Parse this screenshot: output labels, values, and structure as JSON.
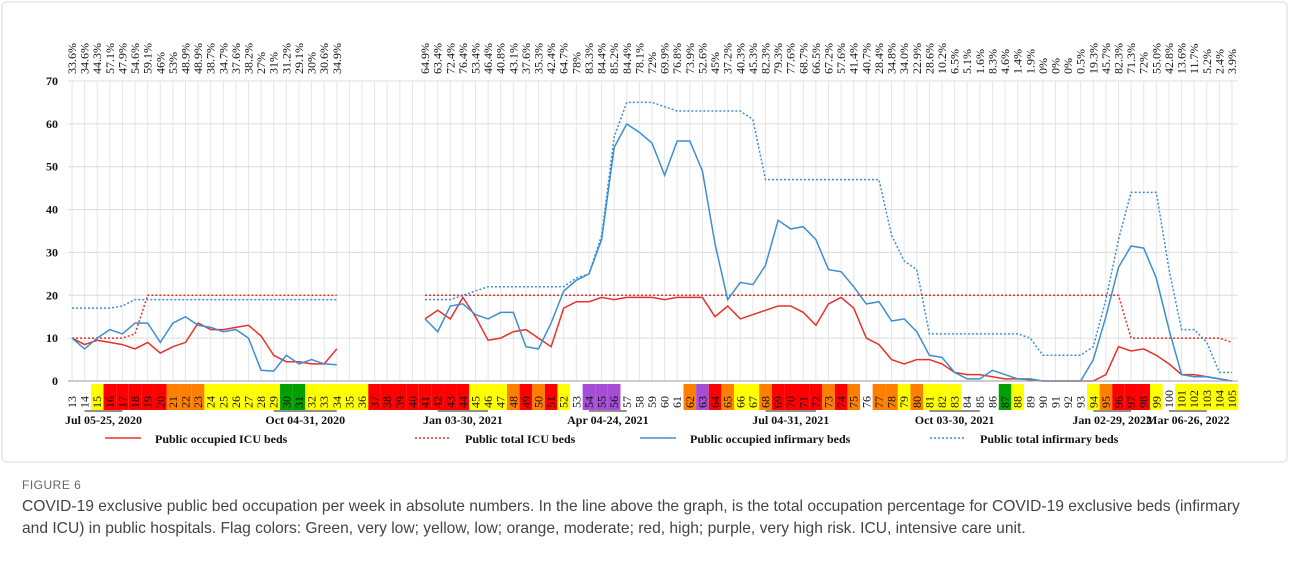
{
  "figure_label": "FIGURE 6",
  "caption": "COVID-19 exclusive public bed occupation per week in absolute numbers. In the line above the graph, is the total occupation percentage for COVID-19 exclusive beds (infirmary and ICU) in public hospitals. Flag colors: Green, very low; yellow, low; orange, moderate; red, high; purple, very high risk. ICU, intensive care unit.",
  "chart_data": {
    "type": "line",
    "categories": [
      13,
      14,
      15,
      16,
      17,
      18,
      19,
      20,
      21,
      22,
      23,
      24,
      25,
      26,
      27,
      28,
      29,
      30,
      31,
      32,
      33,
      34,
      35,
      36,
      37,
      38,
      39,
      40,
      41,
      42,
      43,
      44,
      45,
      46,
      47,
      48,
      49,
      50,
      51,
      52,
      53,
      54,
      55,
      56,
      57,
      58,
      59,
      60,
      61,
      62,
      63,
      64,
      65,
      66,
      67,
      68,
      69,
      70,
      71,
      72,
      73,
      74,
      75,
      76,
      77,
      78,
      79,
      80,
      81,
      82,
      83,
      84,
      85,
      86,
      87,
      88,
      89,
      90,
      91,
      92,
      93,
      94,
      95,
      96,
      97,
      98,
      99,
      100,
      101,
      102,
      103,
      104,
      105
    ],
    "flag_colors": [
      null,
      null,
      "#ffff00",
      "#ff0000",
      "#ff0000",
      "#ff0000",
      "#ff0000",
      "#ff0000",
      "#ff7f00",
      "#ff7f00",
      "#ff7f00",
      "#ffff00",
      "#ffff00",
      "#ffff00",
      "#ffff00",
      "#ffff00",
      "#ffff00",
      "#00a000",
      "#00a000",
      "#ffff00",
      "#ffff00",
      "#ffff00",
      "#ffff00",
      "#ffff00",
      "#ff0000",
      "#ff0000",
      "#ff0000",
      "#ff0000",
      "#ff0000",
      "#ff0000",
      "#ff0000",
      "#ff0000",
      "#ffff00",
      "#ffff00",
      "#ffff00",
      "#ff7f00",
      "#ff0000",
      "#ff7f00",
      "#ff0000",
      "#ffff00",
      null,
      "#a64dd6",
      "#a64dd6",
      "#a64dd6",
      null,
      null,
      null,
      null,
      null,
      "#ff7f00",
      "#a64dd6",
      "#ff0000",
      "#ff7f00",
      "#ffff00",
      "#ffff00",
      "#ff7f00",
      "#ff0000",
      "#ff0000",
      "#ff0000",
      "#ff0000",
      "#ff7f00",
      "#ff0000",
      "#ff7f00",
      null,
      "#ff7f00",
      "#ff7f00",
      "#ffff00",
      "#ff7f00",
      "#ffff00",
      "#ffff00",
      "#ffff00",
      null,
      null,
      null,
      "#00a000",
      "#ffff00",
      null,
      null,
      null,
      null,
      null,
      "#ffff00",
      "#ff7f00",
      "#ff0000",
      "#ff0000",
      "#ff0000",
      "#ffff00",
      null,
      "#ffff00",
      "#ffff00",
      "#ffff00",
      "#ffff00",
      "#ffff00"
    ],
    "occupancy_pct": [
      33.6,
      34.6,
      44.3,
      57.1,
      47.9,
      54.6,
      59.1,
      46,
      53,
      48.9,
      48.9,
      38.7,
      34.7,
      37.6,
      38.2,
      27,
      31,
      31.2,
      29.1,
      30,
      30.6,
      34.9,
      null,
      null,
      null,
      null,
      null,
      null,
      64.9,
      63.4,
      72.4,
      76.4,
      53.4,
      46.4,
      40.8,
      43.1,
      37.6,
      35.3,
      42.4,
      64.7,
      78,
      83.3,
      84.4,
      85.2,
      84.4,
      78.1,
      72,
      69.9,
      76.8,
      73.9,
      52.6,
      45,
      37.2,
      40.3,
      45.3,
      82.3,
      79.3,
      77.6,
      68.7,
      66.5,
      67.2,
      57.6,
      41.4,
      40.7,
      28.4,
      34.8,
      34.0,
      22.9,
      28.6,
      10.2,
      6.5,
      5.1,
      1.6,
      8.3,
      4.6,
      1.4,
      1.9,
      0,
      0,
      0,
      0.5,
      19.3,
      45.7,
      82.3,
      71.3,
      72,
      55.0,
      42.8,
      13.6,
      11.7,
      5.2,
      2.4,
      3.9
    ],
    "occupancy_labels": [
      "33.6%",
      "34.6%",
      "44.3%",
      "57.1%",
      "47.9%",
      "54.6%",
      "59.1%",
      "46%",
      "53%",
      "48.9%",
      "48.9%",
      "38.7%",
      "34.7%",
      "37.6%",
      "38.2%",
      "27%",
      "31%",
      "31.2%",
      "29.1%",
      "30%",
      "30.6%",
      "34.9%",
      null,
      null,
      null,
      null,
      null,
      null,
      "64.9%",
      "63.4%",
      "72.4%",
      "76.4%",
      "53.4%",
      "46.4%",
      "40.8%",
      "43.1%",
      "37.6%",
      "35.3%",
      "42.4%",
      "64.7%",
      "78%",
      "83.3%",
      "84.4%",
      "85.2%",
      "84.4%",
      "78.1%",
      "72%",
      "69.9%",
      "76.8%",
      "73.9%",
      "52.6%",
      "45%",
      "37.2%",
      "40.3%",
      "45.3%",
      "82.3%",
      "79.3%",
      "77.6%",
      "68.7%",
      "66.5%",
      "67.2%",
      "57.6%",
      "41.4%",
      "40.7%",
      "28.4%",
      "34.8%",
      "34.0%",
      "22.9%",
      "28.6%",
      "10.2%",
      "6.5%",
      "5.1%",
      "1.6%",
      "8.3%",
      "4.6%",
      "1.4%",
      "1.9%",
      "0%",
      "0%",
      "0%",
      "0.5%",
      "19.3%",
      "45.7%",
      "82.3%",
      "71.3%",
      "72%",
      "55.0%",
      "42.8%",
      "13.6%",
      "11.7%",
      "5.2%",
      "2.4%",
      "3.9%"
    ],
    "period_labels": [
      "Jul 05-25, 2020",
      "Oct 04-31, 2020",
      "Jan 03-30, 2021",
      "Apr 04-24, 2021",
      "Jul 04-31, 2021",
      "Oct 03-30, 2021",
      "Jan 02-29, 2022",
      "Mar 06-26, 2022"
    ],
    "ylim": [
      0,
      70
    ],
    "yticks": [
      0,
      10,
      20,
      30,
      40,
      50,
      60,
      70
    ],
    "grid": true,
    "series": [
      {
        "name": "Public occupied ICU beds",
        "color": "#e8302a",
        "style": "solid",
        "values": [
          10,
          8.5,
          9.5,
          9,
          8.5,
          7.5,
          9,
          6.5,
          8,
          9,
          13.5,
          12,
          12,
          12.5,
          13,
          10.5,
          6,
          4.5,
          4.5,
          4,
          4,
          7.5,
          null,
          null,
          null,
          null,
          null,
          null,
          14.5,
          16.5,
          14.5,
          19.5,
          15,
          9.5,
          10,
          11.5,
          12,
          10,
          8,
          17,
          18.5,
          18.5,
          19.5,
          19,
          19.5,
          19.5,
          19.5,
          19,
          19.5,
          19.5,
          19.5,
          15,
          17.5,
          14.5,
          15.5,
          16.5,
          17.5,
          17.5,
          16,
          13,
          18,
          19.5,
          17,
          10,
          8.5,
          5,
          4,
          5,
          5,
          4,
          2,
          1.5,
          1.5,
          1,
          0.5,
          0.5,
          0.3,
          0,
          0,
          0,
          0,
          0,
          1.5,
          8,
          7,
          7.5,
          6,
          4,
          1.5,
          1.5,
          1,
          0.5,
          0
        ]
      },
      {
        "name": "Public total ICU beds",
        "color": "#e8302a",
        "style": "dotted",
        "values": [
          10,
          10,
          10,
          10,
          10,
          11,
          20,
          20,
          20,
          20,
          20,
          20,
          20,
          20,
          20,
          20,
          20,
          20,
          20,
          20,
          20,
          20,
          null,
          null,
          null,
          null,
          null,
          null,
          20,
          20,
          20,
          20,
          20,
          20,
          20,
          20,
          20,
          20,
          20,
          20,
          20,
          20,
          20,
          20,
          20,
          20,
          20,
          20,
          20,
          20,
          20,
          20,
          20,
          20,
          20,
          20,
          20,
          20,
          20,
          20,
          20,
          20,
          20,
          20,
          20,
          20,
          20,
          20,
          20,
          20,
          20,
          20,
          20,
          20,
          20,
          20,
          20,
          20,
          20,
          20,
          20,
          20,
          20,
          20,
          10,
          10,
          10,
          10,
          10,
          10,
          10,
          10,
          9
        ]
      },
      {
        "name": "Public occupied infirmary beds",
        "color": "#3d8fd1",
        "style": "solid",
        "values": [
          10,
          7.5,
          10,
          12,
          11,
          13.5,
          13.5,
          9,
          13.5,
          15,
          13,
          12.5,
          11.5,
          12,
          10,
          2.5,
          2.3,
          6,
          4,
          5,
          4,
          3.8,
          null,
          null,
          null,
          null,
          null,
          null,
          14.5,
          11.5,
          17.5,
          18,
          15.5,
          14.5,
          16,
          16,
          8,
          7.5,
          13.5,
          21,
          23.5,
          25,
          33,
          54.5,
          60,
          58,
          55.5,
          48,
          56,
          56,
          49,
          32,
          19,
          23,
          22.5,
          27,
          37.5,
          35.5,
          36,
          33,
          26,
          25.5,
          22,
          18,
          18.5,
          14,
          14.5,
          11.5,
          6,
          5.5,
          2,
          0.5,
          0.5,
          2.5,
          1.5,
          0.5,
          0.5,
          0,
          0,
          0,
          0,
          5,
          15,
          26.5,
          31.5,
          31,
          24,
          12,
          1.5,
          1,
          1,
          0.5,
          0
        ]
      },
      {
        "name": "Public total infirmary beds",
        "color": "#3d8fd1",
        "style": "dotted",
        "values": [
          17,
          17,
          17,
          17,
          17.5,
          19,
          19,
          19,
          19,
          19,
          19,
          19,
          19,
          19,
          19,
          19,
          19,
          19,
          19,
          19,
          19,
          19,
          null,
          null,
          null,
          null,
          null,
          null,
          19,
          19,
          19,
          20,
          21,
          22,
          22,
          22,
          22,
          22,
          22,
          22,
          24,
          25,
          34,
          57,
          65,
          65,
          65,
          64,
          63,
          63,
          63,
          63,
          63,
          63,
          61,
          47,
          47,
          47,
          47,
          47,
          47,
          47,
          47,
          47,
          47,
          34,
          28,
          26,
          11,
          11,
          11,
          11,
          11,
          11,
          11,
          11,
          10,
          6,
          6,
          6,
          6,
          8,
          19,
          33,
          44,
          44,
          44,
          26,
          12,
          12,
          9,
          2,
          2
        ]
      }
    ]
  }
}
